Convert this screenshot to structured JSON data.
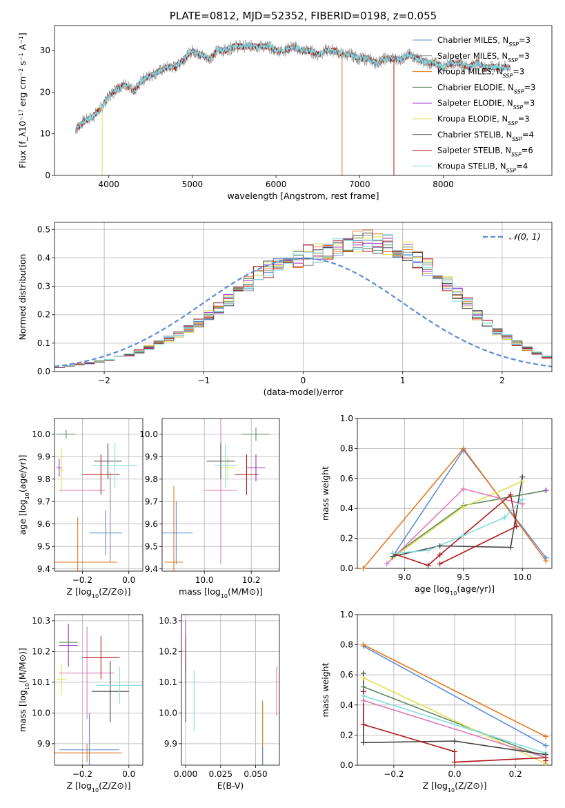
{
  "colors": {
    "chabrier_miles": "#5b8bd8",
    "salpeter_miles": "#8a8a8a",
    "kroupa_miles": "#e6781e",
    "chabrier_elodie": "#5a8a5a",
    "salpeter_elodie": "#9b30c8",
    "kroupa_elodie": "#e0e050",
    "chabrier_stelib": "#444444",
    "salpeter_stelib": "#b01818",
    "kroupa_stelib": "#80dede",
    "pink": "#e07ab8",
    "gauss": "#5b8bd8"
  },
  "chart_data": [
    {
      "id": "spectrum",
      "type": "line",
      "title": "PLATE=0812, MJD=52352, FIBERID=0198, z=0.055",
      "xlabel": "wavelength [Angstrom, rest frame]",
      "ylabel": "Flux [f_λ10^-17 erg cm^-2 s^-1 A^-1]",
      "xlim": [
        3350,
        9300
      ],
      "ylim": [
        0,
        36
      ],
      "xticks": [
        "4000",
        "5000",
        "6000",
        "7000",
        "8000"
      ],
      "yticks": [
        "0",
        "10",
        "20",
        "30"
      ],
      "legend": "upper-right",
      "legend_entries": [
        "Chabrier MILES, N_SSP=3",
        "Salpeter MILES, N_SSP=3",
        "Kroupa MILES, N_SSP=3",
        "Chabrier ELODIE, N_SSP=3",
        "Salpeter ELODIE, N_SSP=3",
        "Kroupa ELODIE, N_SSP=3",
        "Chabrier STELIB, N_SSP=4",
        "Salpeter STELIB, N_SSP=6",
        "Kroupa STELIB, N_SSP=4"
      ],
      "continuum": [
        [
          3600,
          11
        ],
        [
          3700,
          13
        ],
        [
          3800,
          14
        ],
        [
          3900,
          16
        ],
        [
          4000,
          19
        ],
        [
          4100,
          21
        ],
        [
          4200,
          22
        ],
        [
          4300,
          20
        ],
        [
          4400,
          23
        ],
        [
          4500,
          24
        ],
        [
          4600,
          25
        ],
        [
          4700,
          26
        ],
        [
          4800,
          26
        ],
        [
          4900,
          28
        ],
        [
          5000,
          30
        ],
        [
          5100,
          29
        ],
        [
          5200,
          28
        ],
        [
          5300,
          30
        ],
        [
          5400,
          30
        ],
        [
          5500,
          31
        ],
        [
          5600,
          31
        ],
        [
          5700,
          31
        ],
        [
          5800,
          31
        ],
        [
          5900,
          31
        ],
        [
          6000,
          30
        ],
        [
          6100,
          30
        ],
        [
          6200,
          31
        ],
        [
          6300,
          30
        ],
        [
          6400,
          30
        ],
        [
          6500,
          29
        ],
        [
          6600,
          30
        ],
        [
          6700,
          30
        ],
        [
          6800,
          29
        ],
        [
          6900,
          29
        ],
        [
          7000,
          28
        ],
        [
          7100,
          28
        ],
        [
          7200,
          27
        ],
        [
          7300,
          28
        ],
        [
          7400,
          28
        ],
        [
          7500,
          28
        ],
        [
          7600,
          29
        ],
        [
          7700,
          28
        ],
        [
          7800,
          27
        ],
        [
          7900,
          27
        ],
        [
          8000,
          26
        ],
        [
          8100,
          27
        ],
        [
          8200,
          27
        ],
        [
          8300,
          26
        ],
        [
          8400,
          27
        ],
        [
          8500,
          26
        ],
        [
          8600,
          26
        ],
        [
          8700,
          26
        ],
        [
          8800,
          26
        ]
      ]
    },
    {
      "id": "residual_hist",
      "type": "histogram",
      "xlabel": "(data-model)/error",
      "ylabel": "Normed distribution",
      "xlim": [
        -2.5,
        2.5
      ],
      "ylim": [
        0,
        0.525
      ],
      "xticks": [
        "−2",
        "−1",
        "0",
        "1",
        "2"
      ],
      "yticks": [
        "0.0",
        "0.1",
        "0.2",
        "0.3",
        "0.4",
        "0.5"
      ],
      "legend": "upper-right",
      "legend_entries": [
        "𝒩(0, 1)"
      ],
      "bin_width": 0.1,
      "bin_start": -2.5,
      "base_values": [
        0.015,
        0.02,
        0.025,
        0.03,
        0.035,
        0.04,
        0.05,
        0.06,
        0.07,
        0.085,
        0.1,
        0.115,
        0.13,
        0.15,
        0.17,
        0.2,
        0.225,
        0.25,
        0.28,
        0.31,
        0.34,
        0.36,
        0.375,
        0.39,
        0.4,
        0.41,
        0.42,
        0.43,
        0.44,
        0.45,
        0.46,
        0.46,
        0.455,
        0.45,
        0.44,
        0.42,
        0.4,
        0.37,
        0.34,
        0.31,
        0.27,
        0.24,
        0.2,
        0.17,
        0.14,
        0.12,
        0.1,
        0.08,
        0.065,
        0.05
      ]
    },
    {
      "id": "age_vs_Z",
      "type": "errorbar",
      "xlabel": "Z [log10(Z/Z⊙)]",
      "ylabel": "age  [log10(age/yr)]",
      "xlim": [
        -0.32,
        0.06
      ],
      "ylim": [
        9.39,
        10.07
      ],
      "xticks": [
        "−0.2",
        "0.0"
      ],
      "yticks": [
        "9.4",
        "9.5",
        "9.6",
        "9.7",
        "9.8",
        "9.9",
        "10.0"
      ],
      "points": [
        {
          "series": "chabrier_elodie",
          "x": -0.27,
          "y": 10.0,
          "xerr": 0.04,
          "yerr": 0.02
        },
        {
          "series": "salpeter_elodie",
          "x": -0.3,
          "y": 9.85,
          "xerr": 0.01,
          "yerr": 0.04
        },
        {
          "series": "kroupa_elodie",
          "x": -0.29,
          "y": 9.84,
          "xerr": 0.01,
          "yerr": 0.1
        },
        {
          "series": "pink",
          "x": -0.2,
          "y": 9.75,
          "xerr": 0.1,
          "yerr": 0.0
        },
        {
          "series": "chabrier_stelib",
          "x": -0.09,
          "y": 9.88,
          "xerr": 0.06,
          "yerr": 0.08
        },
        {
          "series": "salpeter_stelib",
          "x": -0.12,
          "y": 9.82,
          "xerr": 0.08,
          "yerr": 0.09
        },
        {
          "series": "kroupa_stelib",
          "x": -0.06,
          "y": 9.86,
          "xerr": 0.1,
          "yerr": 0.1
        },
        {
          "series": "chabrier_miles",
          "x": -0.1,
          "y": 9.56,
          "xerr": 0.07,
          "yerr": 0.1
        },
        {
          "series": "kroupa_miles",
          "x": -0.22,
          "y": 9.43,
          "xerr": 0.17,
          "yerr": 0.2
        },
        {
          "series": "salpeter_miles",
          "x": -0.08,
          "y": 9.63,
          "xerr": 0.0,
          "yerr": 0.2
        }
      ]
    },
    {
      "id": "age_vs_mass",
      "type": "errorbar",
      "xlabel": "mass [log10(M/M⊙)]",
      "ylabel": "",
      "xlim": [
        9.82,
        10.32
      ],
      "ylim": [
        9.39,
        10.07
      ],
      "xticks": [
        "10.0",
        "10.2"
      ],
      "yticks": [
        "9.4",
        "9.5",
        "9.6",
        "9.7",
        "9.8",
        "9.9",
        "10.0"
      ],
      "points": [
        {
          "series": "chabrier_elodie",
          "x": 10.22,
          "y": 10.0,
          "xerr": 0.06,
          "yerr": 0.03
        },
        {
          "series": "salpeter_elodie",
          "x": 10.22,
          "y": 9.85,
          "xerr": 0.04,
          "yerr": 0.06
        },
        {
          "series": "kroupa_elodie",
          "x": 10.1,
          "y": 9.85,
          "xerr": 0.03,
          "yerr": 0.05
        },
        {
          "series": "pink",
          "x": 10.07,
          "y": 9.75,
          "xerr": 0.07,
          "yerr": 0.33
        },
        {
          "series": "chabrier_stelib",
          "x": 10.07,
          "y": 9.88,
          "xerr": 0.06,
          "yerr": 0.08
        },
        {
          "series": "salpeter_stelib",
          "x": 10.18,
          "y": 9.82,
          "xerr": 0.05,
          "yerr": 0.09
        },
        {
          "series": "kroupa_stelib",
          "x": 10.09,
          "y": 9.86,
          "xerr": 0.05,
          "yerr": 0.1
        },
        {
          "series": "chabrier_miles",
          "x": 9.88,
          "y": 9.56,
          "xerr": 0.07,
          "yerr": 0.14
        },
        {
          "series": "kroupa_miles",
          "x": 9.87,
          "y": 9.43,
          "xerr": 0.04,
          "yerr": 0.34
        }
      ]
    },
    {
      "id": "massweight_vs_age",
      "type": "line",
      "xlabel": "age  [log10(age/yr)]",
      "ylabel": "mass weight",
      "xlim": [
        8.6,
        10.25
      ],
      "ylim": [
        0,
        1.0
      ],
      "xticks": [
        "9.0",
        "9.5",
        "10.0"
      ],
      "yticks": [
        "0.0",
        "0.2",
        "0.4",
        "0.6",
        "0.8",
        "1.0"
      ],
      "series": [
        {
          "name": "chabrier_miles",
          "x": [
            8.9,
            9.5,
            10.2
          ],
          "y": [
            0.08,
            0.79,
            0.07
          ]
        },
        {
          "name": "kroupa_miles",
          "x": [
            8.65,
            9.5,
            10.2
          ],
          "y": [
            0.0,
            0.8,
            0.05
          ]
        },
        {
          "name": "chabrier_elodie",
          "x": [
            8.9,
            9.5,
            10.2
          ],
          "y": [
            0.08,
            0.42,
            0.52
          ]
        },
        {
          "name": "kroupa_elodie",
          "x": [
            8.9,
            9.5,
            10.0
          ],
          "y": [
            0.07,
            0.41,
            0.58
          ]
        },
        {
          "name": "pink",
          "x": [
            8.85,
            9.5,
            10.0
          ],
          "y": [
            0.03,
            0.53,
            0.43
          ]
        },
        {
          "name": "chabrier_stelib",
          "x": [
            8.9,
            9.3,
            9.9,
            10.0
          ],
          "y": [
            0.08,
            0.15,
            0.14,
            0.61
          ]
        },
        {
          "name": "salpeter_stelib",
          "x": [
            8.9,
            9.2,
            9.3,
            9.9,
            9.95,
            9.3
          ],
          "y": [
            0.1,
            0.02,
            0.09,
            0.49,
            0.28,
            0.03
          ]
        },
        {
          "name": "kroupa_stelib",
          "x": [
            8.9,
            9.2,
            9.5,
            9.85,
            10.0
          ],
          "y": [
            0.1,
            0.12,
            0.22,
            0.34,
            0.46
          ]
        },
        {
          "name": "salpeter_elodie",
          "x": [
            10.2
          ],
          "y": [
            0.52
          ]
        }
      ]
    },
    {
      "id": "mass_vs_Z",
      "type": "errorbar",
      "xlabel": "Z [log10(Z/Z⊙)]",
      "ylabel": "mass [log10(M/M⊙)]",
      "xlim": [
        -0.32,
        0.06
      ],
      "ylim": [
        9.83,
        10.32
      ],
      "xticks": [
        "−0.2",
        "0.0"
      ],
      "yticks": [
        "9.9",
        "10.0",
        "10.1",
        "10.2",
        "10.3"
      ],
      "points": [
        {
          "series": "salpeter_elodie",
          "x": -0.26,
          "y": 10.22,
          "xerr": 0.04,
          "yerr": 0.07
        },
        {
          "series": "chabrier_elodie",
          "x": -0.26,
          "y": 10.23,
          "xerr": 0.04,
          "yerr": 0.0
        },
        {
          "series": "kroupa_elodie",
          "x": -0.29,
          "y": 10.11,
          "xerr": 0.02,
          "yerr": 0.05
        },
        {
          "series": "pink",
          "x": -0.18,
          "y": 10.13,
          "xerr": 0.12,
          "yerr": 0.15
        },
        {
          "series": "salpeter_stelib",
          "x": -0.12,
          "y": 10.18,
          "xerr": 0.08,
          "yerr": 0.07
        },
        {
          "series": "chabrier_stelib",
          "x": -0.08,
          "y": 10.07,
          "xerr": 0.08,
          "yerr": 0.1
        },
        {
          "series": "kroupa_stelib",
          "x": -0.04,
          "y": 10.09,
          "xerr": 0.1,
          "yerr": 0.06
        },
        {
          "series": "chabrier_miles",
          "x": -0.17,
          "y": 9.88,
          "xerr": 0.13,
          "yerr": 0.12
        },
        {
          "series": "kroupa_miles",
          "x": -0.18,
          "y": 9.87,
          "xerr": 0.15,
          "yerr": 0.03
        }
      ]
    },
    {
      "id": "mass_vs_ebv",
      "type": "errorbar",
      "xlabel": "E(B-V)",
      "ylabel": "",
      "xlim": [
        -0.003,
        0.067
      ],
      "ylim": [
        9.83,
        10.32
      ],
      "xticks": [
        "0.000",
        "0.025",
        "0.050"
      ],
      "yticks": [
        "9.9",
        "10.0",
        "10.1",
        "10.2",
        "10.3"
      ],
      "points": [
        {
          "series": "salpeter_elodie",
          "x": 0.0,
          "y": 10.22,
          "xerr": 0.0,
          "yerr": 0.08
        },
        {
          "series": "salpeter_stelib",
          "x": 0.0,
          "y": 10.18,
          "xerr": 0.0,
          "yerr": 0.07
        },
        {
          "series": "chabrier_stelib",
          "x": 0.0,
          "y": 10.07,
          "xerr": 0.0,
          "yerr": 0.1
        },
        {
          "series": "kroupa_stelib",
          "x": 0.006,
          "y": 10.04,
          "xerr": 0.0,
          "yerr": 0.1
        },
        {
          "series": "kroupa_miles",
          "x": 0.055,
          "y": 9.93,
          "xerr": 0.0,
          "yerr": 0.11
        },
        {
          "series": "chabrier_miles",
          "x": 0.055,
          "y": 9.86,
          "xerr": 0.0,
          "yerr": 0.03
        },
        {
          "series": "pink",
          "x": 0.065,
          "y": 10.07,
          "xerr": 0.0,
          "yerr": 0.08
        }
      ]
    },
    {
      "id": "massweight_vs_Z",
      "type": "line",
      "xlabel": "Z [log10(Z/Z⊙)]",
      "ylabel": "mass weight",
      "xlim": [
        -0.32,
        0.32
      ],
      "ylim": [
        0,
        1.0
      ],
      "xticks": [
        "−0.2",
        "0.0",
        "0.2"
      ],
      "yticks": [
        "0.0",
        "0.2",
        "0.4",
        "0.6",
        "0.8",
        "1.0"
      ],
      "series": [
        {
          "name": "chabrier_miles",
          "x": [
            -0.3,
            0.3
          ],
          "y": [
            0.79,
            0.13
          ]
        },
        {
          "name": "kroupa_miles",
          "x": [
            -0.3,
            0.3
          ],
          "y": [
            0.8,
            0.19
          ]
        },
        {
          "name": "chabrier_elodie",
          "x": [
            -0.3,
            0.3
          ],
          "y": [
            0.52,
            0.05
          ]
        },
        {
          "name": "kroupa_elodie",
          "x": [
            -0.3,
            0.3
          ],
          "y": [
            0.58,
            0.01
          ]
        },
        {
          "name": "pink",
          "x": [
            -0.3,
            0.3
          ],
          "y": [
            0.43,
            0.05
          ]
        },
        {
          "name": "kroupa_stelib",
          "x": [
            -0.3,
            0.3
          ],
          "y": [
            0.46,
            0.08
          ]
        },
        {
          "name": "chabrier_stelib",
          "x": [
            -0.3,
            -0.3,
            0.0,
            0.3
          ],
          "y": [
            0.61,
            0.15,
            0.16,
            0.07
          ]
        },
        {
          "name": "salpeter_stelib",
          "x": [
            -0.3,
            -0.3,
            0.0,
            0.0,
            0.3,
            0.3
          ],
          "y": [
            0.49,
            0.27,
            0.09,
            0.02,
            0.05,
            0.03
          ]
        }
      ]
    }
  ]
}
